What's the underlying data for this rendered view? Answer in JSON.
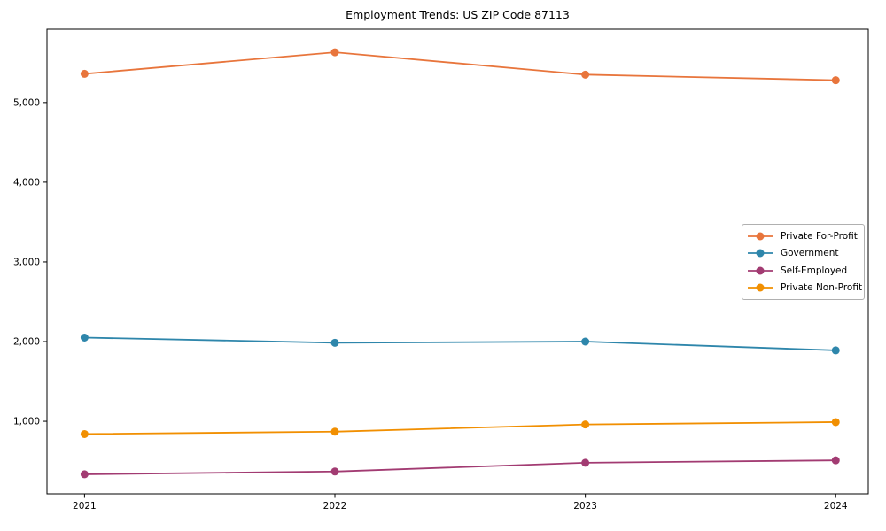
{
  "chart_data": {
    "type": "line",
    "title": "Employment Trends: US ZIP Code 87113",
    "xlabel": "",
    "ylabel": "",
    "x": [
      2021,
      2022,
      2023,
      2024
    ],
    "x_tick_labels": [
      "2021",
      "2022",
      "2023",
      "2024"
    ],
    "y_ticks": [
      1000,
      2000,
      3000,
      4000,
      5000
    ],
    "y_tick_labels": [
      "1,000",
      "2,000",
      "3,000",
      "4,000",
      "5,000"
    ],
    "xlim": [
      2020.85,
      2024.13
    ],
    "ylim": [
      90,
      5920
    ],
    "grid": false,
    "legend_position": "center-right",
    "axis_color": "#000000",
    "marker": "circle",
    "series": [
      {
        "name": "Private For-Profit",
        "color": "#E8753C",
        "values": [
          5360,
          5630,
          5350,
          5280
        ]
      },
      {
        "name": "Government",
        "color": "#2E86AB",
        "values": [
          2050,
          1985,
          2000,
          1890
        ]
      },
      {
        "name": "Self-Employed",
        "color": "#A23B72",
        "values": [
          335,
          370,
          480,
          510
        ]
      },
      {
        "name": "Private Non-Profit",
        "color": "#F18F01",
        "values": [
          840,
          870,
          960,
          990
        ]
      }
    ]
  }
}
